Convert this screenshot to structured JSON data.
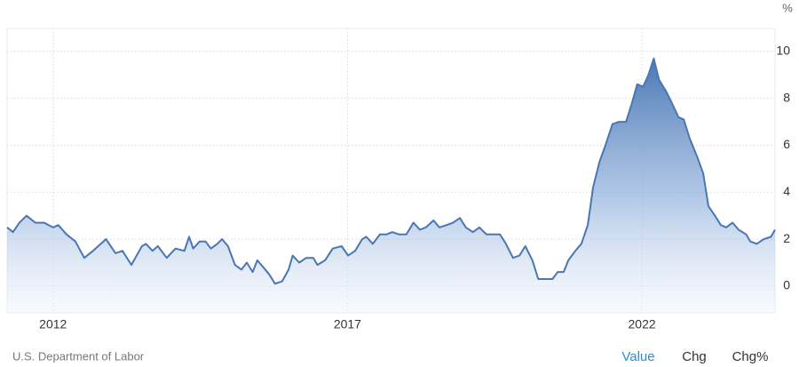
{
  "chart_data": {
    "type": "area",
    "unit": "%",
    "source": "U.S. Department of Labor",
    "color": "#4a76b3",
    "grid": true,
    "xlim": [
      2011.22,
      2024.26
    ],
    "xticks": [
      2012,
      2017,
      2022
    ],
    "ylim": [
      -1.14,
      10.98
    ],
    "yticks": [
      0,
      2,
      4,
      6,
      8,
      10
    ],
    "x": [
      2011.22,
      2011.32,
      2011.43,
      2011.55,
      2011.7,
      2011.85,
      2012.0,
      2012.09,
      2012.23,
      2012.38,
      2012.53,
      2012.68,
      2012.9,
      2013.06,
      2013.18,
      2013.33,
      2013.51,
      2013.58,
      2013.69,
      2013.78,
      2013.93,
      2014.08,
      2014.23,
      2014.31,
      2014.38,
      2014.49,
      2014.59,
      2014.68,
      2014.79,
      2014.87,
      2014.97,
      2015.09,
      2015.2,
      2015.29,
      2015.39,
      2015.47,
      2015.57,
      2015.67,
      2015.77,
      2015.89,
      2016.0,
      2016.07,
      2016.18,
      2016.3,
      2016.42,
      2016.49,
      2016.62,
      2016.75,
      2016.9,
      2017.01,
      2017.13,
      2017.25,
      2017.32,
      2017.43,
      2017.55,
      2017.66,
      2017.76,
      2017.88,
      2018.0,
      2018.12,
      2018.23,
      2018.33,
      2018.46,
      2018.56,
      2018.68,
      2018.79,
      2018.91,
      2019.01,
      2019.13,
      2019.24,
      2019.36,
      2019.47,
      2019.59,
      2019.69,
      2019.81,
      2019.92,
      2020.02,
      2020.14,
      2020.24,
      2020.37,
      2020.48,
      2020.57,
      2020.67,
      2020.75,
      2020.87,
      2020.97,
      2021.08,
      2021.17,
      2021.28,
      2021.38,
      2021.5,
      2021.61,
      2021.73,
      2021.83,
      2021.92,
      2022.02,
      2022.11,
      2022.2,
      2022.29,
      2022.41,
      2022.51,
      2022.62,
      2022.71,
      2022.81,
      2022.94,
      2023.04,
      2023.13,
      2023.24,
      2023.34,
      2023.43,
      2023.54,
      2023.64,
      2023.77,
      2023.84,
      2023.95,
      2024.07,
      2024.19,
      2024.26
    ],
    "values": [
      2.5,
      2.3,
      2.7,
      3.0,
      2.7,
      2.7,
      2.5,
      2.6,
      2.2,
      1.9,
      1.2,
      1.5,
      2.0,
      1.4,
      1.5,
      0.9,
      1.7,
      1.8,
      1.5,
      1.7,
      1.2,
      1.6,
      1.5,
      2.1,
      1.6,
      1.9,
      1.9,
      1.6,
      1.8,
      2.0,
      1.7,
      0.9,
      0.7,
      1.0,
      0.6,
      1.1,
      0.8,
      0.5,
      0.1,
      0.2,
      0.7,
      1.3,
      1.0,
      1.2,
      1.2,
      0.9,
      1.1,
      1.6,
      1.7,
      1.3,
      1.5,
      2.0,
      2.1,
      1.8,
      2.2,
      2.2,
      2.3,
      2.2,
      2.2,
      2.7,
      2.4,
      2.5,
      2.8,
      2.5,
      2.6,
      2.7,
      2.9,
      2.5,
      2.3,
      2.5,
      2.2,
      2.2,
      2.2,
      1.8,
      1.2,
      1.3,
      1.7,
      1.1,
      0.3,
      0.3,
      0.3,
      0.6,
      0.6,
      1.1,
      1.5,
      1.8,
      2.6,
      4.2,
      5.3,
      6.0,
      6.9,
      7.0,
      7.0,
      7.8,
      8.6,
      8.5,
      9.0,
      9.7,
      8.8,
      8.3,
      7.8,
      7.2,
      7.1,
      6.3,
      5.5,
      4.8,
      3.4,
      3.0,
      2.6,
      2.5,
      2.7,
      2.4,
      2.2,
      1.9,
      1.8,
      2.0,
      2.1,
      2.4
    ]
  },
  "controls": [
    "Value",
    "Chg",
    "Chg%"
  ]
}
